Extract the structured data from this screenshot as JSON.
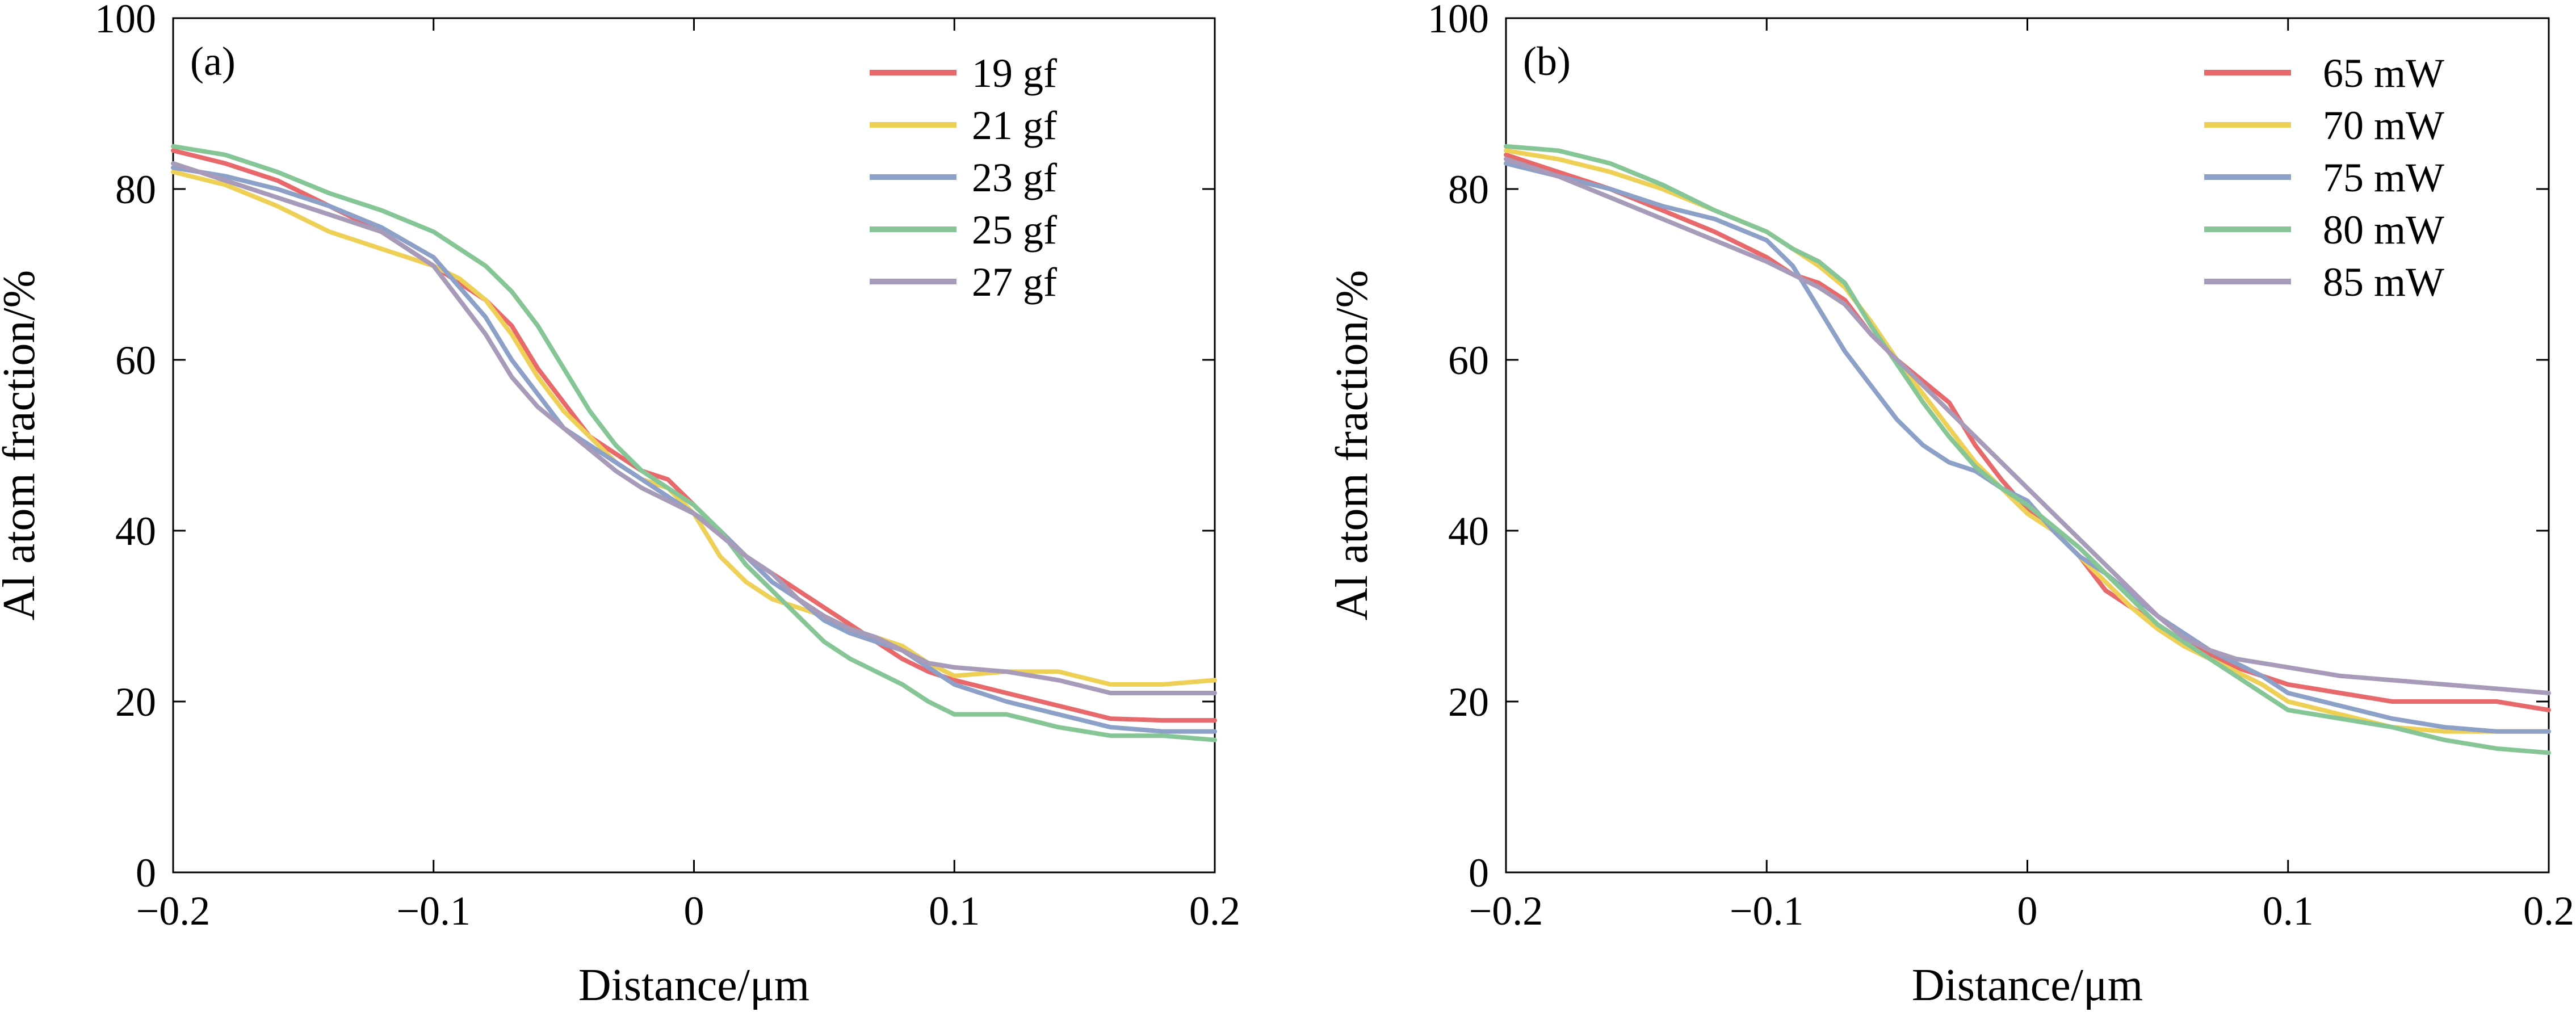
{
  "chart_data": [
    {
      "type": "line",
      "panel_label": "(a)",
      "xlabel": "Distance/μm",
      "ylabel": "Al atom fraction/%",
      "xlim": [
        -0.2,
        0.2
      ],
      "ylim": [
        0,
        100
      ],
      "xticks": [
        -0.2,
        -0.1,
        0,
        0.1,
        0.2
      ],
      "xtick_labels": [
        "−0.2",
        "−0.1",
        "0",
        "0.1",
        "0.2"
      ],
      "yticks": [
        0,
        20,
        40,
        60,
        80,
        100
      ],
      "ytick_labels": [
        "0",
        "20",
        "40",
        "60",
        "80",
        "100"
      ],
      "grid": false,
      "legend_position": "top-right",
      "x": [
        -0.2,
        -0.18,
        -0.16,
        -0.14,
        -0.12,
        -0.1,
        -0.09,
        -0.08,
        -0.07,
        -0.06,
        -0.05,
        -0.04,
        -0.03,
        -0.02,
        -0.01,
        0,
        0.01,
        0.02,
        0.03,
        0.04,
        0.05,
        0.06,
        0.07,
        0.08,
        0.09,
        0.1,
        0.12,
        0.14,
        0.16,
        0.18,
        0.2
      ],
      "series": [
        {
          "name": "19 gf",
          "color": "#e8696b",
          "values": [
            84.5,
            83,
            81,
            78,
            75,
            71,
            69,
            67,
            64,
            59,
            55,
            51,
            49,
            47,
            46,
            43,
            40,
            37,
            35,
            33,
            31,
            29,
            27,
            25,
            23.5,
            22.5,
            21,
            19.5,
            18,
            17.8,
            17.8
          ]
        },
        {
          "name": "21 gf",
          "color": "#eed056",
          "values": [
            82,
            80.5,
            78,
            75,
            73,
            71,
            69.5,
            67,
            63,
            58,
            54,
            51,
            48,
            46,
            45,
            42,
            37,
            34,
            32,
            31,
            30,
            28.5,
            27.5,
            26.5,
            24.5,
            23,
            23.5,
            23.5,
            22,
            22,
            22.5
          ]
        },
        {
          "name": "23 gf",
          "color": "#8da0c8",
          "values": [
            82.5,
            81.5,
            80,
            78,
            75.5,
            72,
            68.5,
            65,
            60,
            56,
            52,
            50,
            48,
            46,
            44,
            42,
            40,
            37,
            34,
            32,
            29.5,
            28,
            27,
            26,
            24,
            22,
            20,
            18.5,
            17,
            16.5,
            16.5
          ]
        },
        {
          "name": "25 gf",
          "color": "#86c696",
          "values": [
            85,
            84,
            82,
            79.5,
            77.5,
            75,
            73,
            71,
            68,
            64,
            59,
            54,
            50,
            47,
            45,
            43,
            40,
            36,
            33,
            30,
            27,
            25,
            23.5,
            22,
            20,
            18.5,
            18.5,
            17,
            16,
            16,
            15.5
          ]
        },
        {
          "name": "27 gf",
          "color": "#a89bb9",
          "values": [
            83,
            81,
            79,
            77,
            75,
            71,
            67,
            63,
            58,
            54.5,
            52,
            49.5,
            47,
            45,
            43.5,
            42,
            39.5,
            37,
            35,
            32,
            30,
            28.5,
            27.5,
            26,
            24.5,
            24,
            23.5,
            22.5,
            21,
            21,
            21
          ]
        }
      ]
    },
    {
      "type": "line",
      "panel_label": "(b)",
      "xlabel": "Distance/μm",
      "ylabel": "Al atom fraction/%",
      "xlim": [
        -0.2,
        0.2
      ],
      "ylim": [
        0,
        100
      ],
      "xticks": [
        -0.2,
        -0.1,
        0,
        0.1,
        0.2
      ],
      "xtick_labels": [
        "−0.2",
        "−0.1",
        "0",
        "0.1",
        "0.2"
      ],
      "yticks": [
        0,
        20,
        40,
        60,
        80,
        100
      ],
      "ytick_labels": [
        "0",
        "20",
        "40",
        "60",
        "80",
        "100"
      ],
      "grid": false,
      "legend_position": "top-right",
      "x": [
        -0.2,
        -0.18,
        -0.16,
        -0.14,
        -0.12,
        -0.1,
        -0.09,
        -0.08,
        -0.07,
        -0.06,
        -0.05,
        -0.04,
        -0.03,
        -0.02,
        -0.01,
        0,
        0.01,
        0.02,
        0.03,
        0.04,
        0.05,
        0.06,
        0.07,
        0.08,
        0.09,
        0.1,
        0.12,
        0.14,
        0.16,
        0.18,
        0.2
      ],
      "series": [
        {
          "name": "65 mW",
          "color": "#e8696b",
          "values": [
            84,
            82,
            80,
            77.5,
            75,
            72,
            70,
            69,
            67,
            63,
            60,
            57.5,
            55,
            50,
            46,
            42.5,
            40,
            37,
            33,
            31,
            29,
            27,
            25.5,
            24,
            23,
            22,
            21,
            20,
            20,
            20,
            19
          ]
        },
        {
          "name": "70 mW",
          "color": "#eed056",
          "values": [
            84.5,
            83.5,
            82,
            80,
            77.5,
            75,
            73,
            71,
            68.5,
            64.5,
            60,
            56,
            52,
            48,
            45,
            42,
            40,
            37,
            34,
            31,
            28.5,
            26.5,
            25,
            23.5,
            22,
            20,
            18.5,
            17,
            16.5,
            16.5,
            16.5
          ]
        },
        {
          "name": "75 mW",
          "color": "#8da0c8",
          "values": [
            83,
            81.5,
            80,
            78,
            76.5,
            74,
            71,
            66,
            61,
            57,
            53,
            50,
            48,
            47,
            45,
            43.5,
            40,
            37,
            35,
            32.5,
            30,
            28,
            26,
            24.5,
            23,
            21,
            19.5,
            18,
            17,
            16.5,
            16.5
          ]
        },
        {
          "name": "80 mW",
          "color": "#86c696",
          "values": [
            85,
            84.5,
            83,
            80.5,
            77.5,
            75,
            73,
            71.5,
            69,
            64,
            59.5,
            55,
            51,
            47.5,
            45,
            43,
            40.5,
            38,
            35,
            32,
            29,
            27,
            25,
            23,
            21,
            19,
            18,
            17,
            15.5,
            14.5,
            14
          ]
        },
        {
          "name": "85 mW",
          "color": "#a89bb9",
          "values": [
            83.5,
            81.5,
            79,
            76.5,
            74,
            71.5,
            70,
            68.5,
            66.5,
            63,
            60,
            57,
            54,
            51,
            48,
            45,
            42,
            39,
            36,
            33,
            30,
            27.5,
            26,
            25,
            24.5,
            24,
            23,
            22.5,
            22,
            21.5,
            21
          ]
        }
      ]
    }
  ]
}
